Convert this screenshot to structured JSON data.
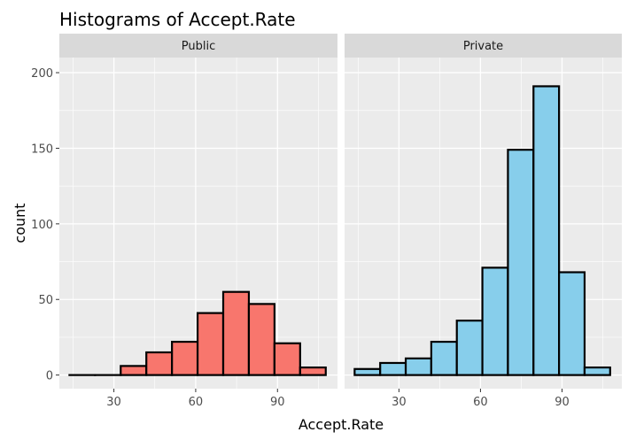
{
  "chart_data": {
    "type": "bar",
    "title": "Histograms of Accept.Rate",
    "xlabel": "Accept.Rate",
    "ylabel": "count",
    "xlim": [
      10,
      112
    ],
    "ylim": [
      -9,
      210
    ],
    "xticks": [
      30,
      60,
      90
    ],
    "yticks": [
      0,
      50,
      100,
      150,
      200
    ],
    "bin_width": 9.4,
    "grid": true,
    "colors": {
      "public_fill": "#F8766D",
      "private_fill": "#87CEEB",
      "bar_outline": "#000000",
      "panel_bg": "#EBEBEB",
      "strip_bg": "#D9D9D9"
    },
    "panels": [
      {
        "name": "Public",
        "fill": "#F8766D",
        "bin_centers": [
          18.4,
          27.8,
          37.2,
          46.6,
          56.0,
          65.4,
          74.8,
          84.2,
          93.6,
          103.0
        ],
        "values": [
          0,
          0,
          6,
          15,
          22,
          41,
          55,
          47,
          21,
          5
        ]
      },
      {
        "name": "Private",
        "fill": "#87CEEB",
        "bin_centers": [
          18.4,
          27.8,
          37.2,
          46.6,
          56.0,
          65.4,
          74.8,
          84.2,
          93.6,
          103.0
        ],
        "values": [
          4,
          8,
          11,
          22,
          36,
          71,
          149,
          191,
          68,
          5
        ]
      }
    ]
  }
}
